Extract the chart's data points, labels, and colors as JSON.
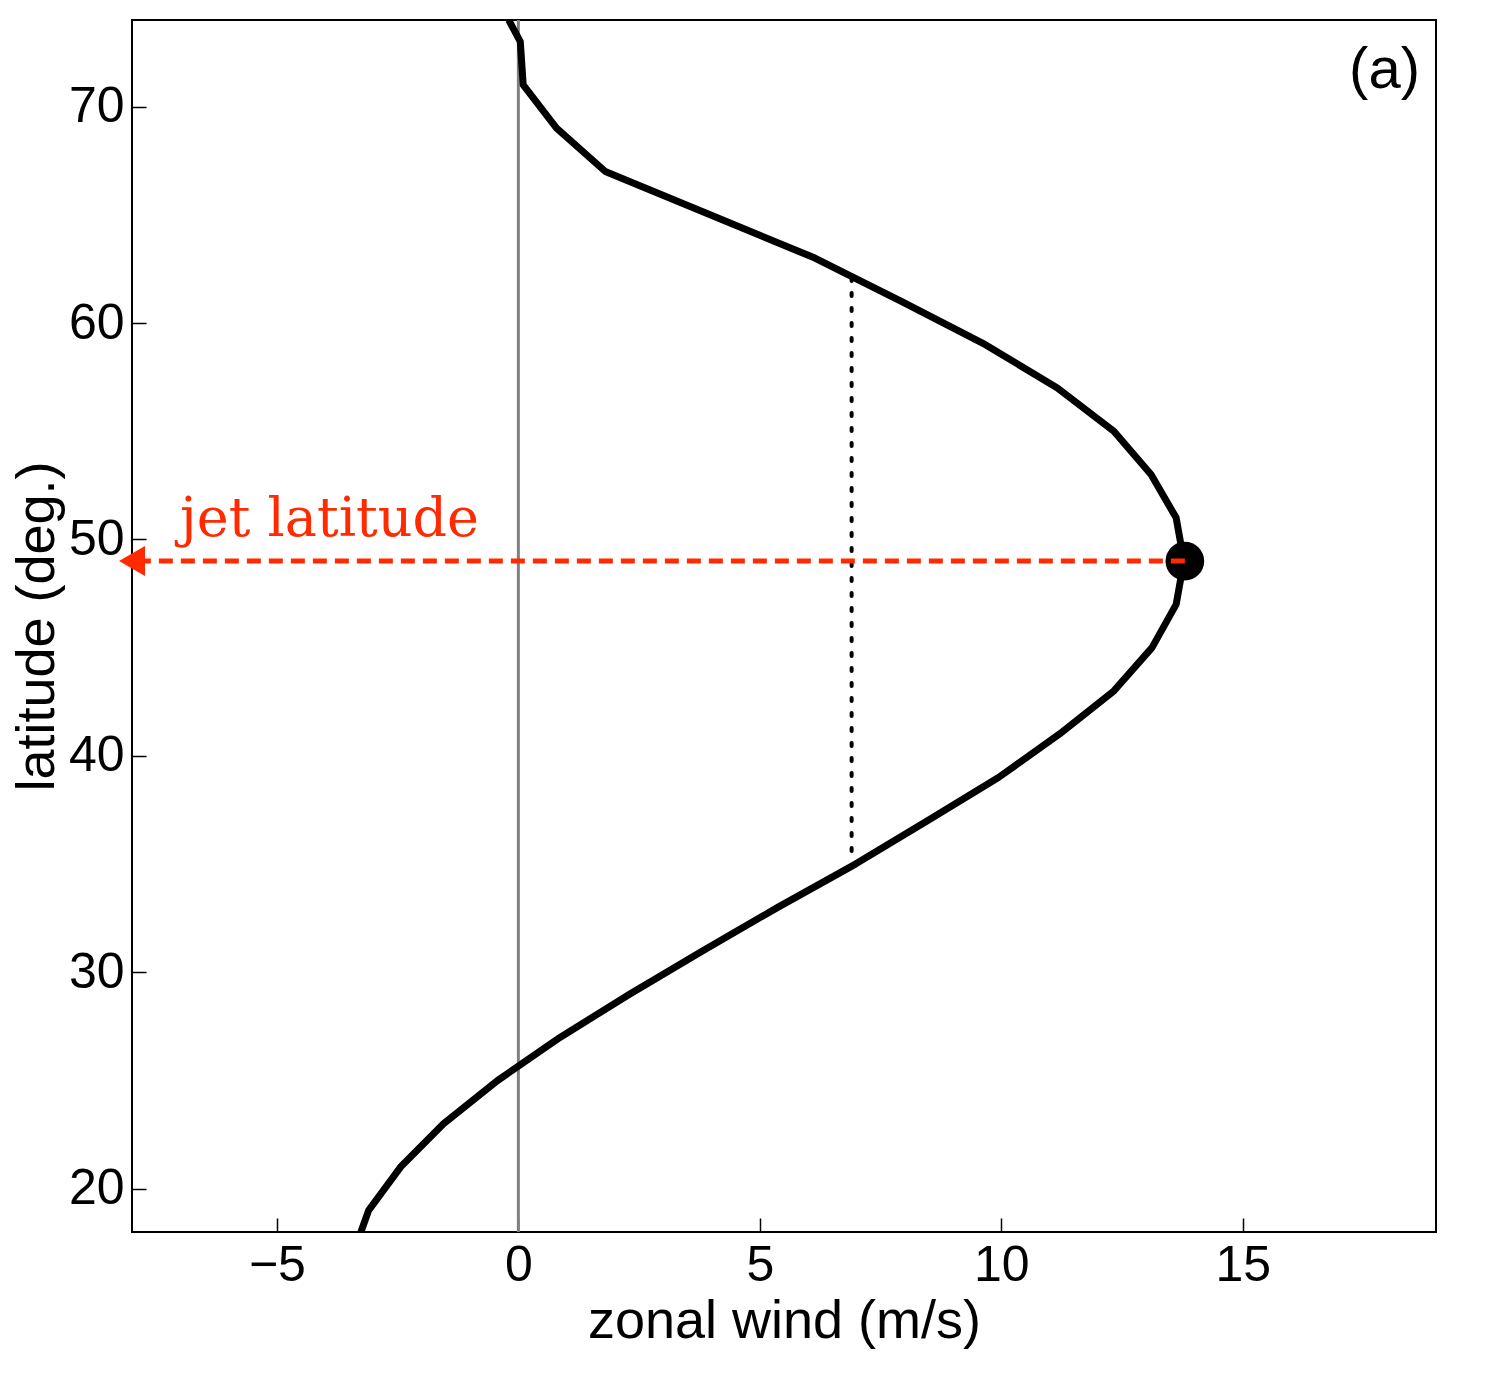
{
  "chart_data": {
    "type": "line",
    "xlabel": "zonal wind (m/s)",
    "ylabel": "latitude (deg.)",
    "xlim": [
      -8,
      19
    ],
    "ylim": [
      18,
      74
    ],
    "xticks": [
      -5,
      0,
      5,
      10,
      15
    ],
    "yticks": [
      20,
      30,
      40,
      50,
      60,
      70
    ],
    "grid": false,
    "series": [
      {
        "color": "#000000",
        "line_style": "solid",
        "marker": "none",
        "x": [
          -3.26,
          -3.1,
          -2.44,
          -1.55,
          -0.43,
          0.87,
          2.31,
          3.82,
          5.37,
          6.98,
          8.47,
          9.94,
          11.2,
          12.33,
          13.12,
          13.62,
          13.78,
          13.62,
          13.1,
          12.33,
          11.16,
          9.67,
          7.93,
          6.14,
          3.97,
          1.8,
          0.79,
          0.1,
          0.04,
          -0.2
        ],
        "values": [
          18,
          19,
          21,
          23,
          25,
          27,
          29,
          31,
          33,
          35,
          37,
          39,
          41,
          43,
          45,
          47,
          49,
          51,
          53,
          55,
          57,
          59,
          61,
          63,
          65,
          67,
          69,
          71,
          73,
          74
        ]
      },
      {
        "type": "line",
        "color": "#000000",
        "line_style": "dotted",
        "marker": "none",
        "x": [
          6.9,
          6.9
        ],
        "values": [
          35.6,
          62.2
        ]
      },
      {
        "type": "line",
        "color": "#ff2a00",
        "line_style": "dashed",
        "x": [
          13.8,
          -8
        ],
        "values": [
          49,
          49
        ]
      },
      {
        "type": "scatter",
        "color": "#000000",
        "marker": "circle",
        "x": [
          13.8
        ],
        "values": [
          49
        ]
      }
    ],
    "ref_lines": [
      {
        "axis": "x",
        "value": 0,
        "color": "#808080",
        "line_style": "solid"
      }
    ],
    "annotations": [
      "(a)",
      "jet latitude"
    ]
  }
}
